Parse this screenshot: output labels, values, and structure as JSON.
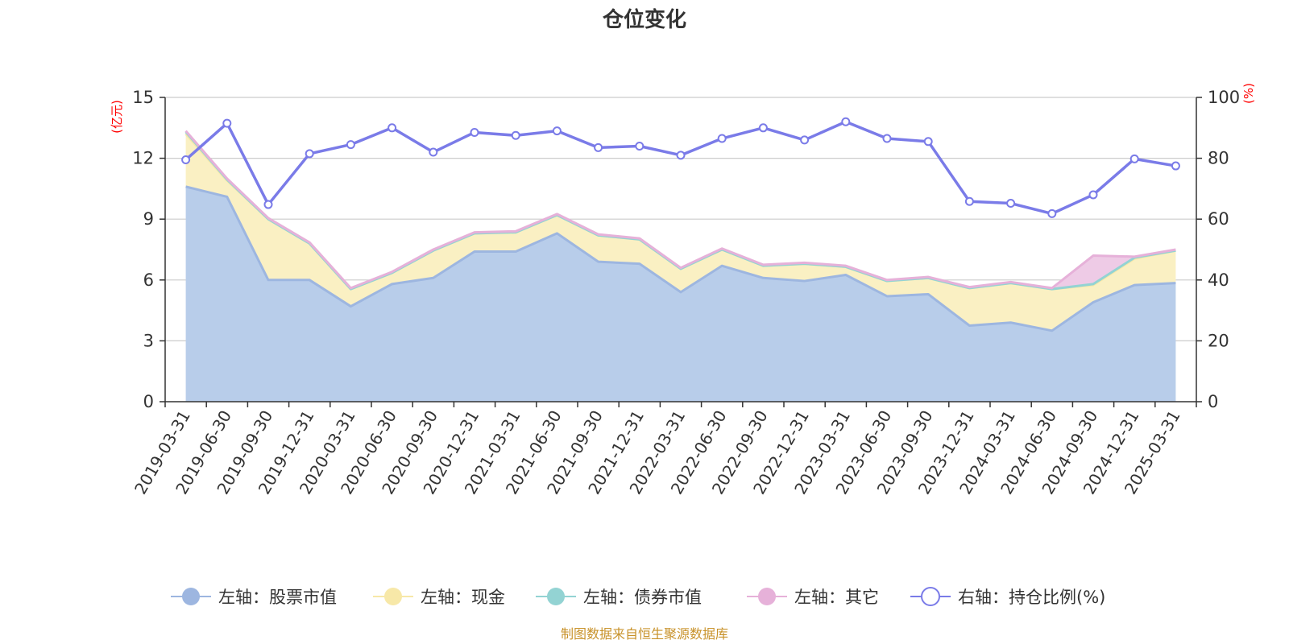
{
  "chart_data": {
    "type": "area",
    "title": "仓位变化",
    "left_unit": "(亿元)",
    "right_unit": "(%)",
    "source": "制图数据来自恒生聚源数据库",
    "left_ylim": [
      0,
      15
    ],
    "left_ticks": [
      0,
      3,
      6,
      9,
      12,
      15
    ],
    "right_ylim": [
      0,
      100
    ],
    "right_ticks": [
      0,
      20,
      40,
      60,
      80,
      100
    ],
    "grid": true,
    "legend_position": "bottom",
    "categories": [
      "2019-03-31",
      "2019-06-30",
      "2019-09-30",
      "2019-12-31",
      "2020-03-31",
      "2020-06-30",
      "2020-09-30",
      "2020-12-31",
      "2021-03-31",
      "2021-06-30",
      "2021-09-30",
      "2021-12-31",
      "2022-03-31",
      "2022-06-30",
      "2022-09-30",
      "2022-12-31",
      "2023-03-31",
      "2023-06-30",
      "2023-09-30",
      "2023-12-31",
      "2024-03-31",
      "2024-06-30",
      "2024-09-30",
      "2024-12-31",
      "2025-03-31"
    ],
    "stacked_series": [
      {
        "name": "左轴：股票市值",
        "axis": "left",
        "color": "#9db6e0",
        "fill": "#b8cdea",
        "values": [
          10.6,
          10.1,
          6.0,
          6.0,
          4.7,
          5.8,
          6.1,
          7.4,
          7.4,
          8.3,
          6.9,
          6.8,
          5.4,
          6.7,
          6.1,
          5.95,
          6.25,
          5.2,
          5.3,
          3.75,
          3.9,
          3.5,
          4.9,
          5.75,
          5.85
        ]
      },
      {
        "name": "左轴：现金",
        "axis": "left",
        "color": "#f7e8a8",
        "fill": "#faf0c3",
        "values": [
          2.6,
          0.8,
          3.0,
          1.8,
          0.85,
          0.55,
          1.35,
          0.9,
          0.95,
          0.9,
          1.3,
          1.2,
          1.15,
          0.8,
          0.6,
          0.85,
          0.4,
          0.75,
          0.8,
          1.85,
          1.95,
          2.05,
          0.85,
          1.3,
          1.6
        ]
      },
      {
        "name": "左轴：债券市值",
        "axis": "left",
        "color": "#93d3d3",
        "fill": "#a9dedb",
        "values": [
          0.1,
          0.05,
          0,
          0,
          0,
          0,
          0,
          0,
          0,
          0,
          0,
          0,
          0,
          0,
          0,
          0,
          0,
          0,
          0,
          0,
          0,
          0,
          0.05,
          0.05,
          0
        ]
      },
      {
        "name": "左轴：其它",
        "axis": "left",
        "color": "#e6b1d9",
        "fill": "#eecbe6",
        "values": [
          0.05,
          0.05,
          0.05,
          0.05,
          0.05,
          0.05,
          0.05,
          0.05,
          0.05,
          0.05,
          0.05,
          0.05,
          0.05,
          0.05,
          0.05,
          0.05,
          0.05,
          0.05,
          0.05,
          0.05,
          0.05,
          0.05,
          1.4,
          0.05,
          0.05
        ]
      }
    ],
    "line_series": {
      "name": "右轴：持仓比例(%)",
      "axis": "right",
      "color": "#7a7be8",
      "values": [
        79.5,
        91.5,
        64.8,
        81.5,
        84.5,
        90.0,
        82.0,
        88.5,
        87.5,
        89.0,
        83.5,
        84.0,
        81.0,
        86.5,
        90.0,
        86.0,
        92.0,
        86.5,
        85.5,
        65.8,
        65.2,
        61.8,
        68.0,
        79.8,
        77.5
      ]
    }
  }
}
